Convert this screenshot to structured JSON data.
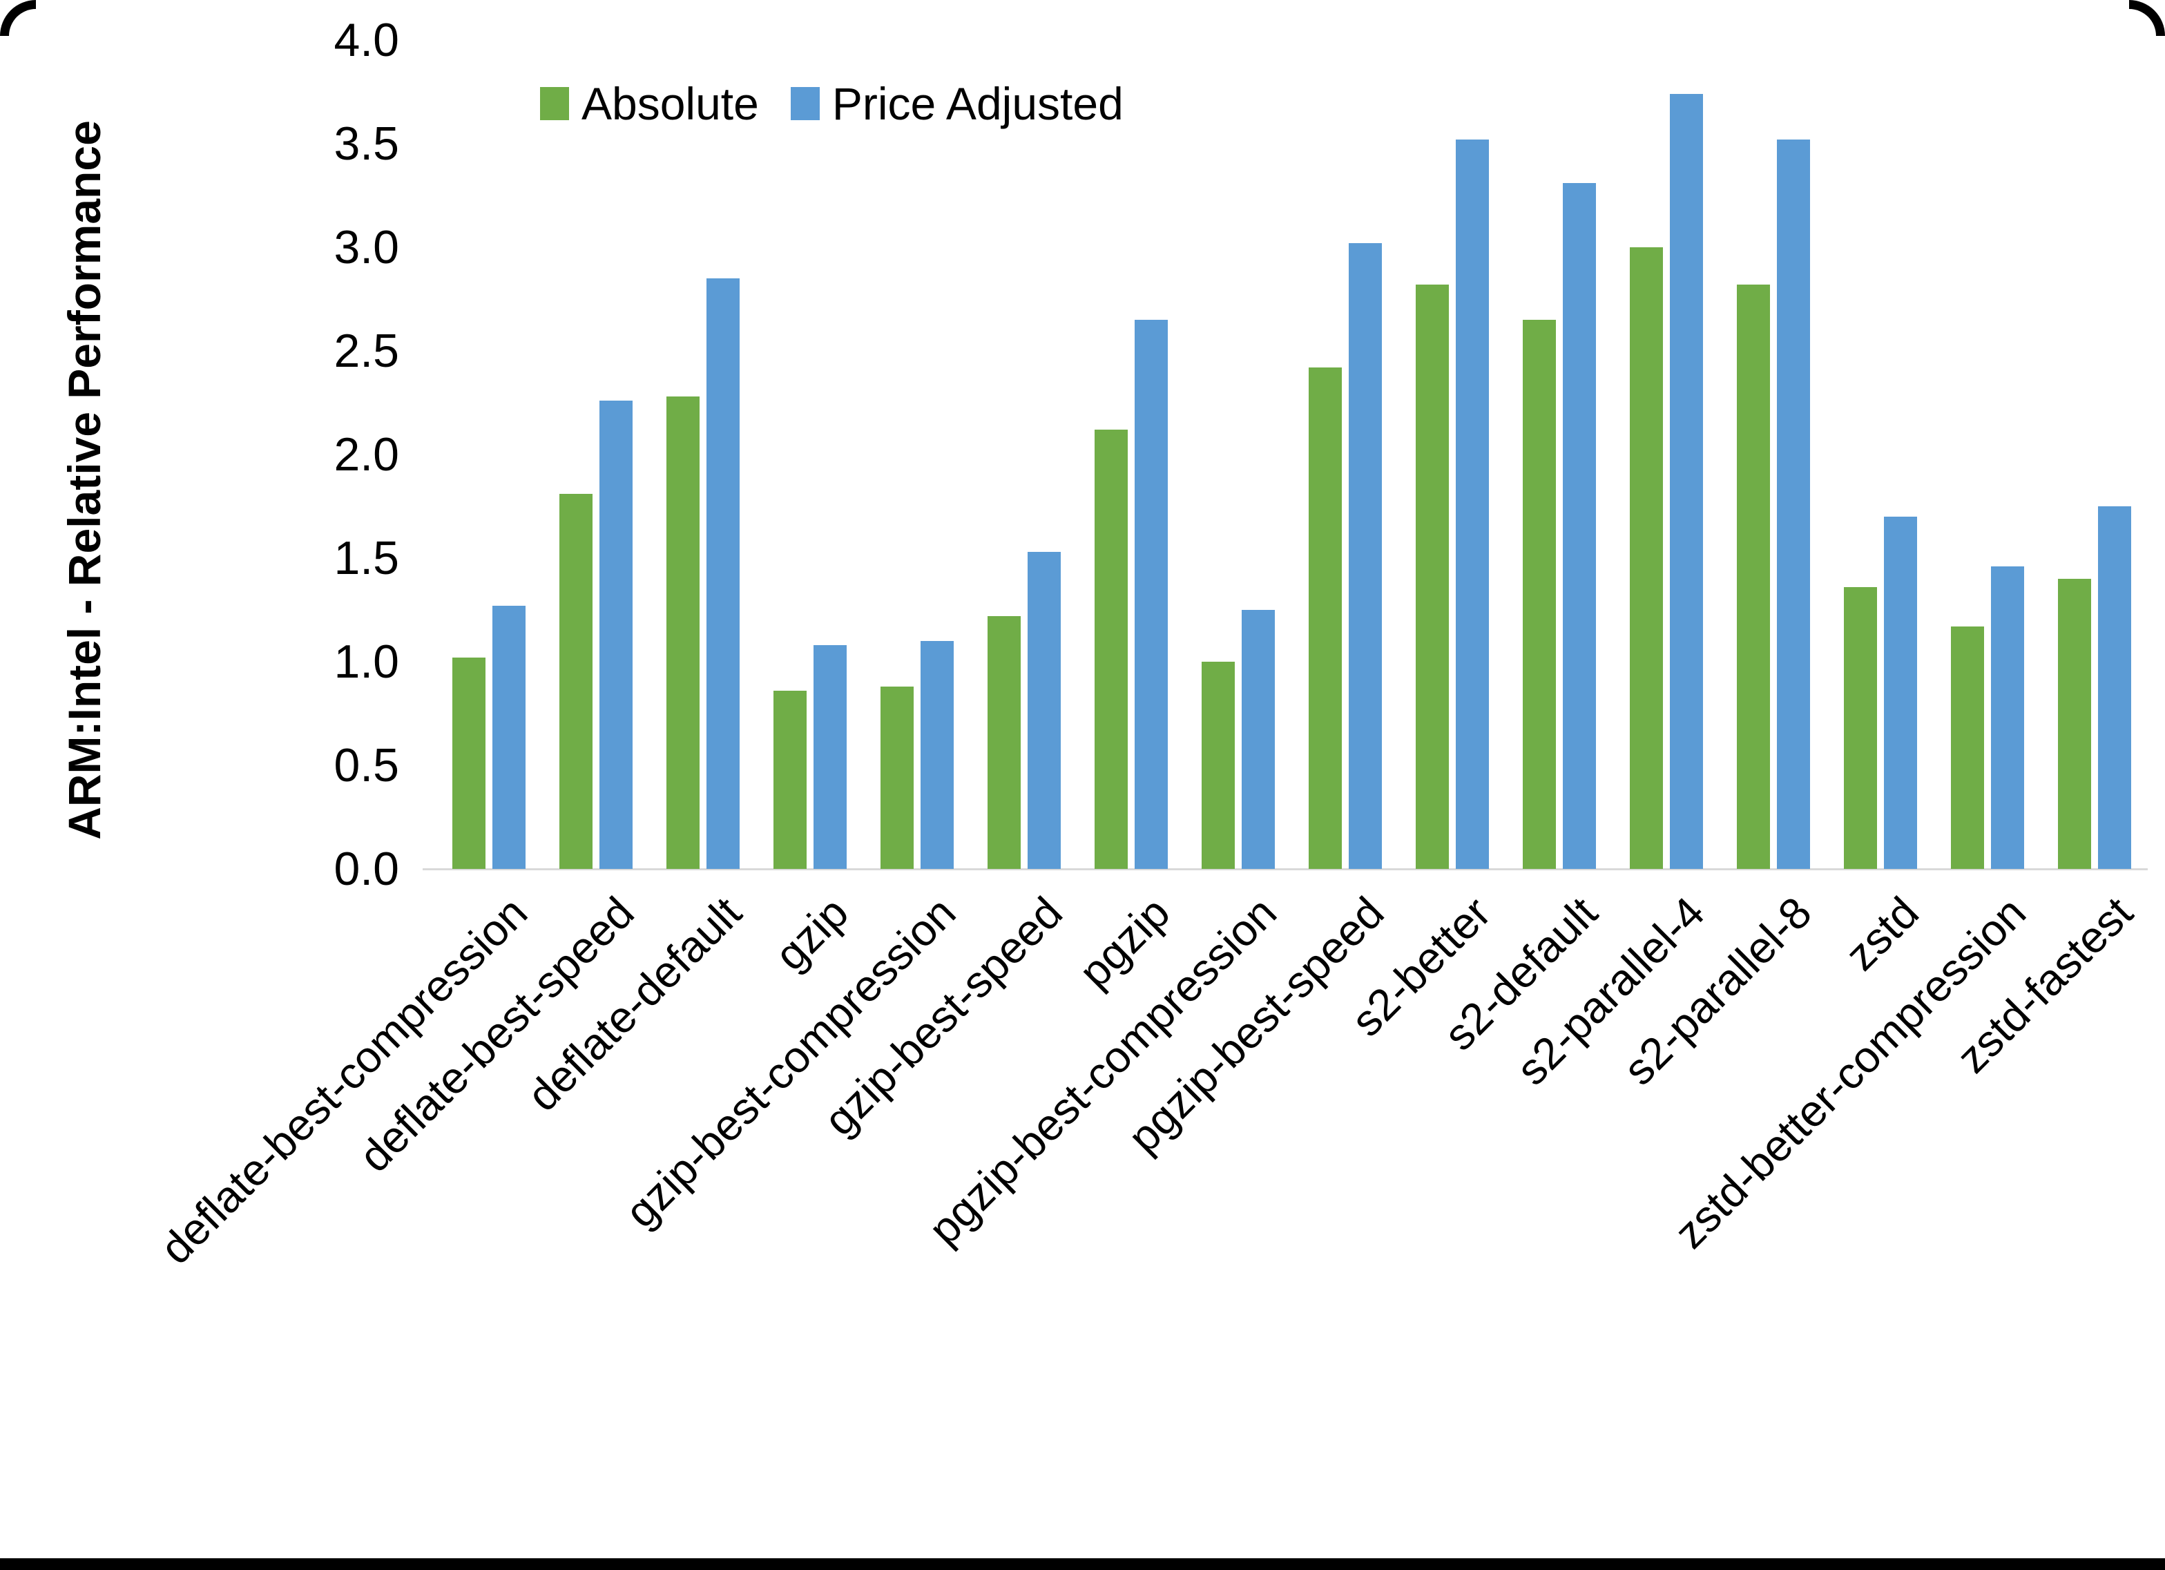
{
  "chart": {
    "y_axis_title": "ARM:Intel - Relative Performance",
    "axis_line_color": "#d9d9d9",
    "frame_color": "#000000",
    "background_color": "#ffffff"
  },
  "legend": {
    "items": [
      {
        "label": "Absolute",
        "color": "#70AD47"
      },
      {
        "label": "Price Adjusted",
        "color": "#5B9BD5"
      }
    ]
  },
  "chart_data": {
    "type": "bar",
    "title": "",
    "xlabel": "",
    "ylabel": "ARM:Intel - Relative Performance",
    "ylim": [
      0.0,
      4.0
    ],
    "ytick_step": 0.5,
    "y_tick_labels": [
      "4.0",
      "3.5",
      "3.0",
      "2.5",
      "2.0",
      "1.5",
      "1.0",
      "0.5",
      "0.0"
    ],
    "grid": false,
    "legend_position": "top-center",
    "categories": [
      "deflate-best-compression",
      "deflate-best-speed",
      "deflate-default",
      "gzip",
      "gzip-best-compression",
      "gzip-best-speed",
      "pgzip",
      "pgzip-best-compression",
      "pgzip-best-speed",
      "s2-better",
      "s2-default",
      "s2-parallel-4",
      "s2-parallel-8",
      "zstd",
      "zstd-better-compression",
      "zstd-fastest"
    ],
    "series": [
      {
        "name": "Absolute",
        "color": "#70AD47",
        "values": [
          1.02,
          1.81,
          2.28,
          0.86,
          0.88,
          1.22,
          2.12,
          1.0,
          2.42,
          2.82,
          2.65,
          3.0,
          2.82,
          1.36,
          1.17,
          1.4
        ]
      },
      {
        "name": "Price Adjusted",
        "color": "#5B9BD5",
        "values": [
          1.27,
          2.26,
          2.85,
          1.08,
          1.1,
          1.53,
          2.65,
          1.25,
          3.02,
          3.52,
          3.31,
          3.74,
          3.52,
          1.7,
          1.46,
          1.75
        ]
      }
    ]
  }
}
